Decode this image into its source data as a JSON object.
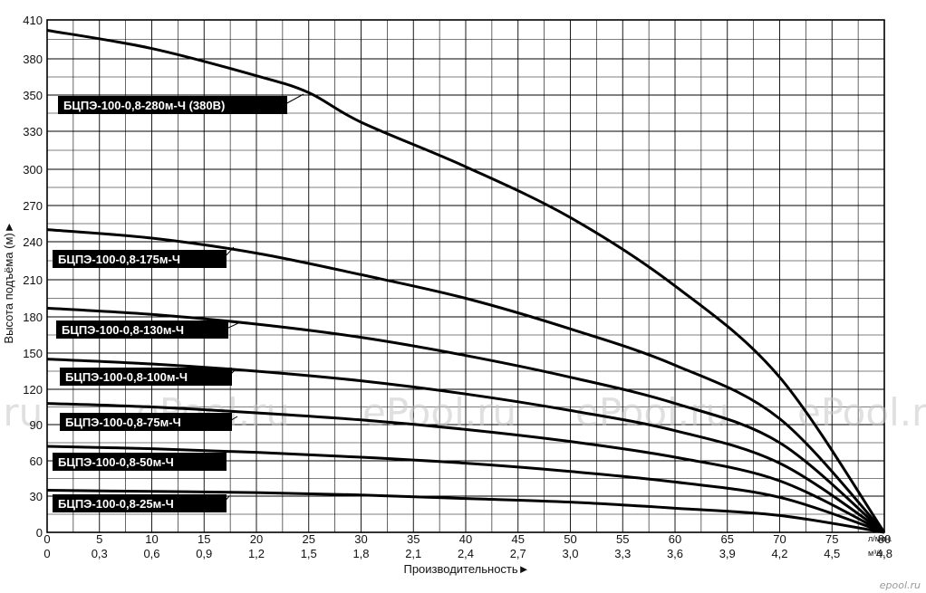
{
  "chart_data": {
    "type": "line",
    "xlabel": "Производительность►",
    "ylabel": "Высота подъёма (м)►",
    "x_unit_primary": "л/мин.",
    "x_unit_secondary": "м³/ч.",
    "xlim": [
      0,
      80
    ],
    "ylim": [
      0,
      410
    ],
    "x_ticks": [
      0,
      5,
      10,
      15,
      20,
      25,
      30,
      35,
      40,
      45,
      50,
      55,
      60,
      65,
      70,
      75,
      80
    ],
    "x_ticks_secondary": [
      "0",
      "0,3",
      "0,6",
      "0,9",
      "1,2",
      "1,5",
      "1,8",
      "2,1",
      "2,4",
      "2,7",
      "3,0",
      "3,3",
      "3,6",
      "3,9",
      "4,2",
      "4,5",
      "4,8"
    ],
    "y_ticks": [
      0,
      30,
      60,
      90,
      120,
      150,
      180,
      210,
      240,
      270,
      300,
      330,
      350,
      380,
      410
    ],
    "grid": true,
    "series": [
      {
        "name": "БЦПЭ-100-0,8-280м-Ч (380В)",
        "x": [
          0,
          10,
          20,
          25,
          30,
          40,
          50,
          60,
          70,
          80
        ],
        "y": [
          402,
          388,
          366,
          352,
          335,
          302,
          260,
          205,
          130,
          0
        ]
      },
      {
        "name": "БЦПЭ-100-0,8-175м-Ч",
        "x": [
          0,
          10,
          20,
          30,
          40,
          50,
          60,
          70,
          80
        ],
        "y": [
          250,
          243,
          231,
          214,
          195,
          170,
          140,
          95,
          0
        ]
      },
      {
        "name": "БЦПЭ-100-0,8-130м-Ч",
        "x": [
          0,
          10,
          20,
          30,
          40,
          50,
          60,
          70,
          80
        ],
        "y": [
          187,
          182,
          174,
          163,
          148,
          130,
          108,
          75,
          0
        ]
      },
      {
        "name": "БЦПЭ-100-0,8-100м-Ч",
        "x": [
          0,
          10,
          20,
          30,
          40,
          50,
          60,
          70,
          80
        ],
        "y": [
          145,
          141,
          135,
          127,
          116,
          102,
          85,
          58,
          0
        ]
      },
      {
        "name": "БЦПЭ-100-0,8-75м-Ч",
        "x": [
          0,
          10,
          20,
          30,
          40,
          50,
          60,
          70,
          80
        ],
        "y": [
          108,
          105,
          100,
          94,
          86,
          76,
          63,
          43,
          0
        ]
      },
      {
        "name": "БЦПЭ-100-0,8-50м-Ч",
        "x": [
          0,
          10,
          20,
          30,
          40,
          50,
          60,
          70,
          80
        ],
        "y": [
          72,
          70,
          67,
          63,
          58,
          51,
          42,
          29,
          0
        ]
      },
      {
        "name": "БЦПЭ-100-0,8-25м-Ч",
        "x": [
          0,
          10,
          20,
          30,
          40,
          50,
          60,
          70,
          80
        ],
        "y": [
          35,
          34,
          33,
          31,
          28,
          25,
          20,
          14,
          0
        ]
      }
    ]
  },
  "watermarks": [
    "ePool.ru",
    "ePool.ru",
    "ePool.ru",
    "ePool.ru",
    ".ru"
  ],
  "logo": "epool.ru"
}
